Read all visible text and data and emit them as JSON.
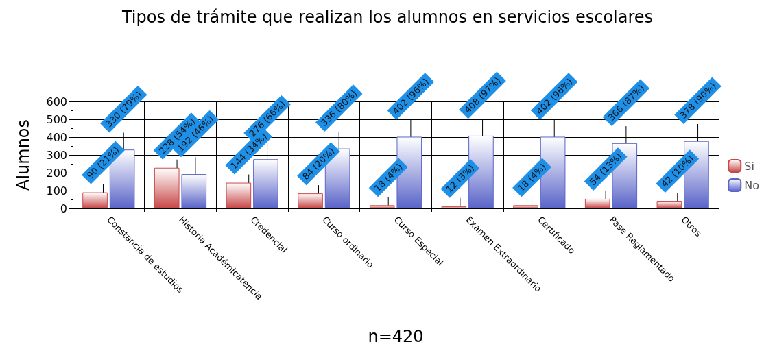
{
  "chart_data": {
    "type": "bar",
    "title": "Tipos de trámite que realizan los alumnos en servicios escolares",
    "xlabel": "n=420",
    "ylabel": "Alumnos",
    "categories": [
      "Constancia de estudios",
      "Historia Académicatencia",
      "Credencial",
      "Curso ordinario",
      "Curso Especial",
      "Examen Extraordinario",
      "Certificado",
      "Pase Reglamentado",
      "Otros"
    ],
    "series": [
      {
        "name": "Si",
        "color": "#c84848",
        "values": [
          90,
          228,
          144,
          84,
          18,
          12,
          18,
          54,
          42
        ],
        "value_labels": [
          "90 (21%)",
          "228 (54%)",
          "144 (34%)",
          "84 (20%)",
          "18 (4%)",
          "12 (3%)",
          "18 (4%)",
          "54 (13%)",
          "42 (10%)"
        ]
      },
      {
        "name": "No",
        "color": "#5a64c8",
        "values": [
          330,
          192,
          276,
          336,
          402,
          408,
          402,
          366,
          378
        ],
        "value_labels": [
          "330 (79%)",
          "192 (46%)",
          "276 (66%)",
          "336 (80%)",
          "402 (96%)",
          "408 (97%)",
          "402 (96%)",
          "366 (87%)",
          "378 (90%)"
        ]
      }
    ],
    "ylim": [
      0,
      600
    ],
    "yticks": [
      0,
      100,
      200,
      300,
      400,
      500,
      600
    ],
    "grid": true,
    "legend": "right"
  }
}
